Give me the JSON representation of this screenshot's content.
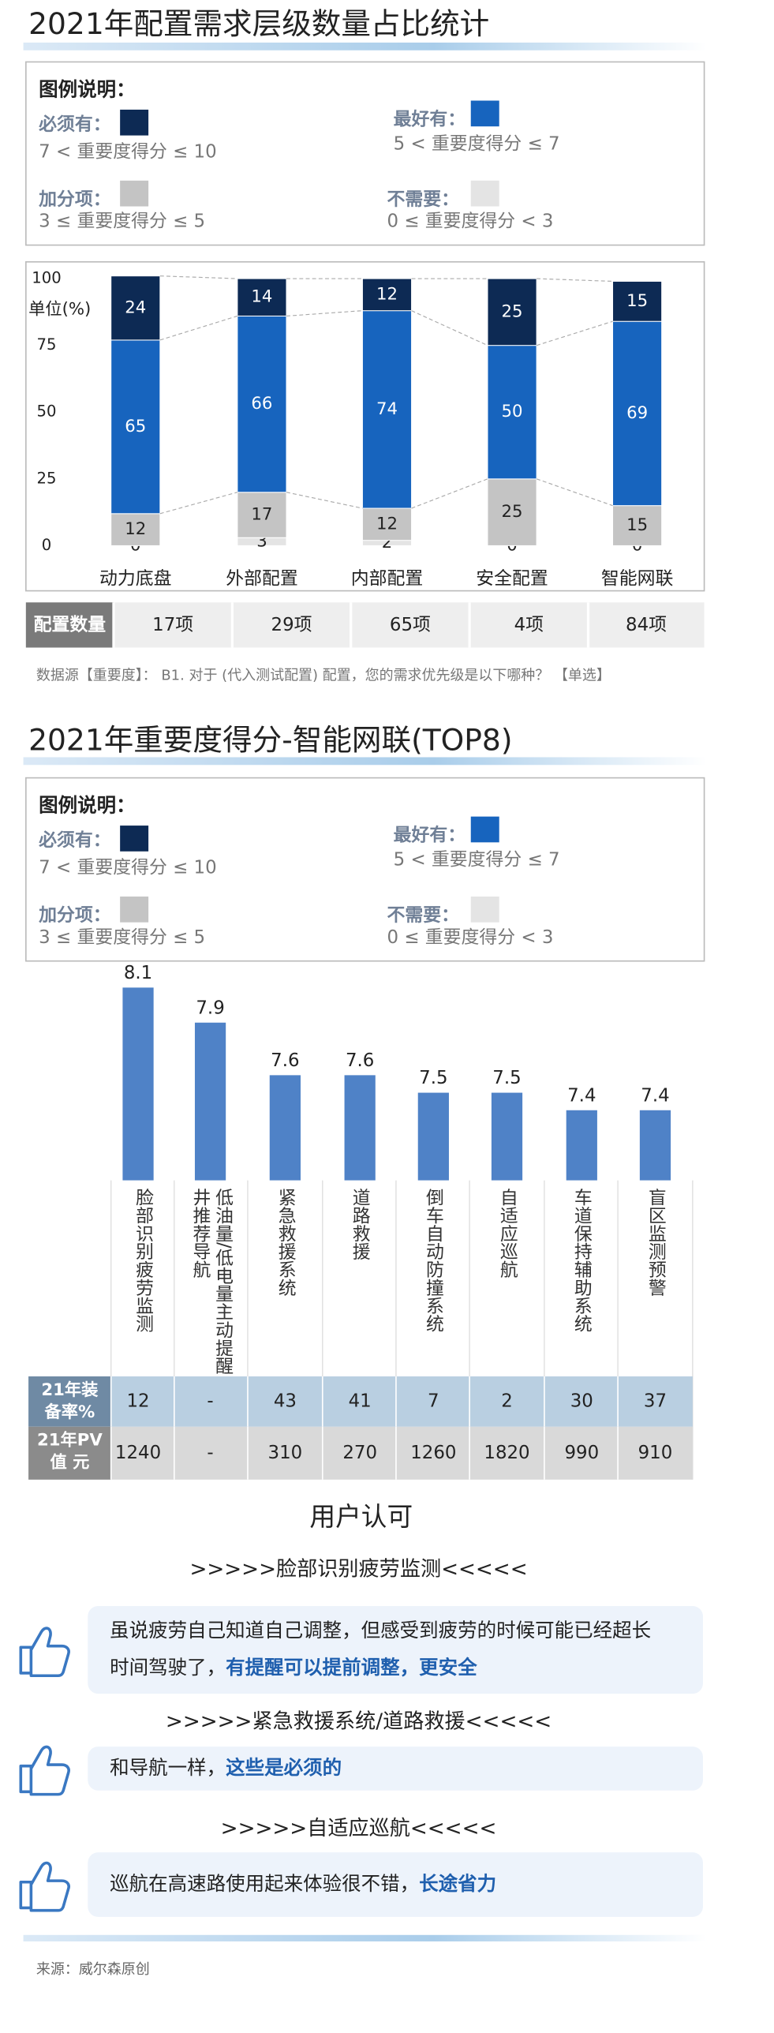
{
  "chart_data": [
    {
      "type": "stacked_bar",
      "title": "2021年配置需求层级数量占比统计",
      "y_unit": "单位(%)",
      "categories": [
        "动力底盘",
        "外部配置",
        "内部配置",
        "安全配置",
        "智能网联"
      ],
      "series": [
        {
          "name": "不需要：",
          "range": "0 ≤ 重要度得分 < 3",
          "color": "#e4e4e4",
          "values": [
            0,
            3,
            2,
            0,
            0
          ]
        },
        {
          "name": "加分项：",
          "range": "3 ≤ 重要度得分 ≤ 5",
          "color": "#c4c4c4",
          "values": [
            12,
            17,
            12,
            25,
            15
          ]
        },
        {
          "name": "最好有：",
          "range": "5 < 重要度得分 ≤ 7",
          "color": "#1764be",
          "values": [
            65,
            66,
            74,
            50,
            69
          ]
        },
        {
          "name": "必须有：",
          "range": "7 < 重要度得分 ≤ 10",
          "color": "#0d2a54",
          "values": [
            24,
            14,
            12,
            25,
            15
          ]
        }
      ],
      "ylim": [
        0,
        100
      ],
      "yticks": [
        0,
        25,
        50,
        75,
        100
      ]
    },
    {
      "type": "bar",
      "title": "2021年重要度得分-智能网联(TOP8)",
      "categories": [
        "脸部识别疲劳监测",
        "低油量/低电量主动提醒井推荐导航",
        "紧急救援系统",
        "道路救援",
        "倒车自动防撞系统",
        "自适应巡航",
        "车道保持辅助系统",
        "盲区监测预警"
      ],
      "values": [
        8.1,
        7.9,
        7.6,
        7.6,
        7.5,
        7.5,
        7.4,
        7.4
      ],
      "color": "#4f82c7",
      "ylim": [
        7,
        8.2
      ]
    }
  ],
  "legend_title": "图例说明：",
  "count_table": {
    "header": "配置数量",
    "cells": [
      "17项",
      "29项",
      "65项",
      "4项",
      "84项"
    ]
  },
  "source_note": "数据源【重要度】： B1. 对于 (代入测试配置) 配置，您的需求优先级是以下哪种？ 【单选】",
  "equip_table": {
    "row_headers": [
      [
        "21年装",
        "备率%"
      ],
      [
        "21年PV",
        "值 元"
      ]
    ],
    "rows": [
      [
        "12",
        "-",
        "43",
        "41",
        "7",
        "2",
        "30",
        "37"
      ],
      [
        "1240",
        "-",
        "310",
        "270",
        "1260",
        "1820",
        "990",
        "910"
      ]
    ]
  },
  "user_section": {
    "title": "用户认可",
    "groups": [
      {
        "heading": ">>>>>脸部识别疲劳监测<<<<<",
        "lines": [
          [
            {
              "text": "虽说疲劳自己知道自己调整，但感受到疲劳的时候可能已经超长",
              "highlight": false
            }
          ],
          [
            {
              "text": "时间驾驶了，",
              "highlight": false
            },
            {
              "text": "有提醒可以提前调整，更安全",
              "highlight": true
            }
          ]
        ]
      },
      {
        "heading": ">>>>>紧急救援系统/道路救援<<<<<",
        "lines": [
          [
            {
              "text": "和导航一样，",
              "highlight": false
            },
            {
              "text": "这些是必须的",
              "highlight": true
            }
          ]
        ]
      },
      {
        "heading": ">>>>>自适应巡航<<<<<",
        "lines": [
          [
            {
              "text": "巡航在高速路使用起来体验很不错，",
              "highlight": false
            },
            {
              "text": "长途省力",
              "highlight": true
            }
          ]
        ]
      }
    ]
  },
  "footer": "来源：威尔森原创"
}
